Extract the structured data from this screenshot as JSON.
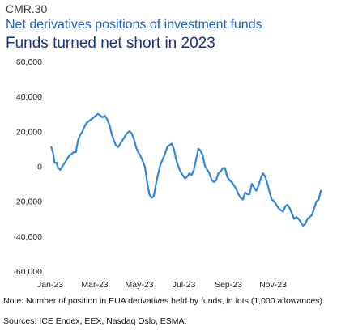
{
  "figure": {
    "id": "CMR.30",
    "title": "Net derivatives positions of investment funds",
    "subtitle": "Funds turned net short in 2023",
    "note": "Note: Number of position in EUA derivatives held by funds, in lots (1,000 allowances).",
    "sources": "Sources: ICE Endex, EEX, Nasdaq Oslo, ESMA."
  },
  "colors": {
    "line": "#2e86de",
    "title": "#1f5fbf",
    "subtitle": "#1a2f8a"
  },
  "chart_data": {
    "type": "line",
    "title": "Funds turned net short in 2023",
    "xlabel": "",
    "ylabel": "",
    "ylim": [
      -60000,
      60000
    ],
    "yticks": [
      -60000,
      -40000,
      -20000,
      0,
      20000,
      40000,
      60000
    ],
    "ytick_labels": [
      "-60,000",
      "-40,000",
      "-20,000",
      "0",
      "20,000",
      "40,000",
      "60,000"
    ],
    "xlim": [
      0,
      12
    ],
    "xticks": [
      0,
      2,
      4,
      6,
      8,
      10
    ],
    "xtick_labels": [
      "Jan-23",
      "Mar-23",
      "May-23",
      "Jul-23",
      "Sep-23",
      "Nov-23"
    ],
    "grid": false,
    "legend": "none",
    "series": [
      {
        "x": [
          0.05,
          0.12,
          0.2,
          0.28,
          0.36,
          0.45,
          0.55,
          0.65,
          0.75,
          0.85,
          0.95,
          1.05,
          1.15,
          1.25,
          1.35,
          1.45,
          1.55,
          1.65,
          1.75,
          1.85,
          1.95,
          2.05,
          2.15,
          2.25,
          2.35,
          2.45,
          2.55,
          2.65,
          2.75,
          2.85,
          2.95,
          3.05,
          3.15,
          3.25,
          3.35,
          3.45,
          3.55,
          3.65,
          3.75,
          3.85,
          3.95,
          4.05,
          4.15,
          4.25,
          4.35,
          4.45,
          4.55,
          4.65,
          4.75,
          4.85,
          4.95,
          5.05,
          5.15,
          5.25,
          5.35,
          5.45,
          5.55,
          5.65,
          5.75,
          5.85,
          5.95,
          6.05,
          6.15,
          6.25,
          6.35,
          6.45,
          6.55,
          6.65,
          6.75,
          6.85,
          6.95,
          7.05,
          7.15,
          7.25,
          7.35,
          7.45,
          7.55,
          7.65,
          7.75,
          7.85,
          7.95,
          8.05,
          8.15,
          8.25,
          8.35,
          8.45,
          8.55,
          8.65,
          8.75,
          8.85,
          8.95,
          9.05,
          9.15,
          9.25,
          9.35,
          9.45,
          9.55,
          9.65,
          9.75,
          9.85,
          9.95,
          10.05,
          10.15,
          10.25,
          10.35,
          10.45,
          10.55,
          10.65,
          10.75,
          10.85,
          10.95,
          11.05,
          11.15,
          11.25,
          11.35,
          11.45,
          11.55,
          11.65,
          11.75,
          11.85,
          11.95,
          12.05,
          12.15
        ],
        "y": [
          11000,
          8000,
          2000,
          2000,
          -1000,
          -2000,
          0,
          2000,
          4000,
          6000,
          7000,
          8000,
          8000,
          15000,
          18000,
          20000,
          23000,
          25000,
          26000,
          27000,
          28000,
          29000,
          30000,
          29000,
          28000,
          29000,
          27000,
          24000,
          19000,
          15000,
          12000,
          11000,
          13000,
          15000,
          17000,
          19000,
          20000,
          19000,
          16000,
          11000,
          8000,
          6000,
          3000,
          0,
          -9000,
          -16000,
          -18000,
          -17000,
          -10000,
          -4000,
          1000,
          4000,
          7000,
          11000,
          12000,
          13000,
          10000,
          4000,
          0,
          -3000,
          -5000,
          -7000,
          -6000,
          -4000,
          -5000,
          -2000,
          4000,
          10000,
          9000,
          6000,
          0,
          -2000,
          -4000,
          -8000,
          -9000,
          -8000,
          -4000,
          -3000,
          -1000,
          -1000,
          -6000,
          -8000,
          -9000,
          -11000,
          -13000,
          -16000,
          -18000,
          -19000,
          -15000,
          -16000,
          -16000,
          -10000,
          -12000,
          -14000,
          -11000,
          -7000,
          -4000,
          -6000,
          -10000,
          -15000,
          -19000,
          -20000,
          -22000,
          -24000,
          -25000,
          -26000,
          -23000,
          -22000,
          -24000,
          -27000,
          -30000,
          -29000,
          -30000,
          -32000,
          -34000,
          -33000,
          -30000,
          -29000,
          -28000,
          -24000,
          -20000,
          -19000,
          -14000
        ]
      }
    ]
  }
}
